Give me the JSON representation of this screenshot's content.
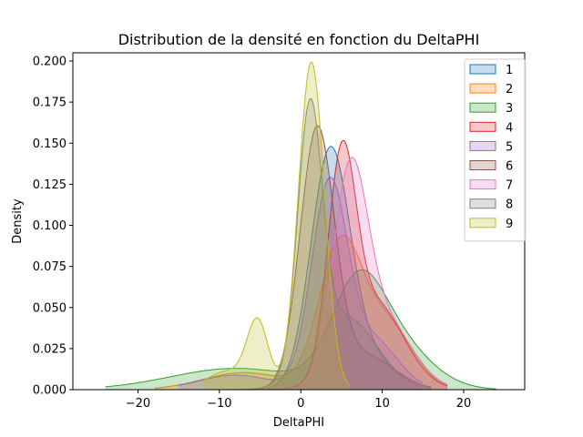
{
  "chart_data": {
    "type": "area",
    "title": "Distribution de la densité en fonction du DeltaPHI",
    "xlabel": "DeltaPHI",
    "ylabel": "Density",
    "xlim": [
      -28,
      27.5
    ],
    "ylim": [
      0,
      0.205
    ],
    "xticks": [
      -20,
      -10,
      0,
      10,
      20
    ],
    "xtick_labels": [
      "−20",
      "−10",
      "0",
      "10",
      "20"
    ],
    "yticks": [
      0,
      0.025,
      0.05,
      0.075,
      0.1,
      0.125,
      0.15,
      0.175,
      0.2
    ],
    "ytick_labels": [
      "0.000",
      "0.025",
      "0.050",
      "0.075",
      "0.100",
      "0.125",
      "0.150",
      "0.175",
      "0.200"
    ],
    "grid": false,
    "legend_position": "top-right",
    "series": [
      {
        "name": "1",
        "color": "#1f77b4",
        "range": [
          -4,
          15
        ],
        "components": [
          {
            "w": 0.86,
            "mu": 3.6,
            "sd": 2.4
          },
          {
            "w": 0.14,
            "mu": 8.5,
            "sd": 3.0
          }
        ]
      },
      {
        "name": "2",
        "color": "#ff7f0e",
        "range": [
          -18,
          18
        ],
        "components": [
          {
            "w": 0.55,
            "mu": 4.8,
            "sd": 2.6
          },
          {
            "w": 0.32,
            "mu": 10.5,
            "sd": 3.2
          },
          {
            "w": 0.13,
            "mu": -7.0,
            "sd": 5.0
          }
        ]
      },
      {
        "name": "3",
        "color": "#2ca02c",
        "range": [
          -24,
          24
        ],
        "components": [
          {
            "w": 0.4,
            "mu": 6.8,
            "sd": 3.2
          },
          {
            "w": 0.34,
            "mu": 11.0,
            "sd": 4.5
          },
          {
            "w": 0.26,
            "mu": -8.0,
            "sd": 8.0
          }
        ]
      },
      {
        "name": "4",
        "color": "#d62728",
        "range": [
          -8,
          18
        ],
        "components": [
          {
            "w": 0.52,
            "mu": 5.0,
            "sd": 1.7
          },
          {
            "w": 0.48,
            "mu": 9.0,
            "sd": 3.6
          }
        ]
      },
      {
        "name": "5",
        "color": "#9467bd",
        "range": [
          -15,
          15
        ],
        "components": [
          {
            "w": 0.68,
            "mu": 3.5,
            "sd": 2.2
          },
          {
            "w": 0.22,
            "mu": 9.0,
            "sd": 3.0
          },
          {
            "w": 0.1,
            "mu": -8.0,
            "sd": 4.5
          }
        ]
      },
      {
        "name": "6",
        "color": "#8c564b",
        "range": [
          -12,
          16
        ],
        "components": [
          {
            "w": 0.82,
            "mu": 2.0,
            "sd": 2.1
          },
          {
            "w": 0.18,
            "mu": 8.0,
            "sd": 3.5
          }
        ]
      },
      {
        "name": "7",
        "color": "#e377c2",
        "range": [
          -6,
          18
        ],
        "components": [
          {
            "w": 0.62,
            "mu": 6.0,
            "sd": 2.1
          },
          {
            "w": 0.38,
            "mu": 10.0,
            "sd": 3.5
          }
        ]
      },
      {
        "name": "8",
        "color": "#7f7f7f",
        "range": [
          -12,
          16
        ],
        "components": [
          {
            "w": 0.58,
            "mu": 1.1,
            "sd": 1.5
          },
          {
            "w": 0.42,
            "mu": 5.5,
            "sd": 3.8
          }
        ]
      },
      {
        "name": "9",
        "color": "#bcbd22",
        "range": [
          -12,
          6
        ],
        "components": [
          {
            "w": 0.8,
            "mu": 1.3,
            "sd": 1.6
          },
          {
            "w": 0.13,
            "mu": -5.3,
            "sd": 1.3
          },
          {
            "w": 0.07,
            "mu": -9.0,
            "sd": 2.5
          }
        ]
      }
    ]
  }
}
